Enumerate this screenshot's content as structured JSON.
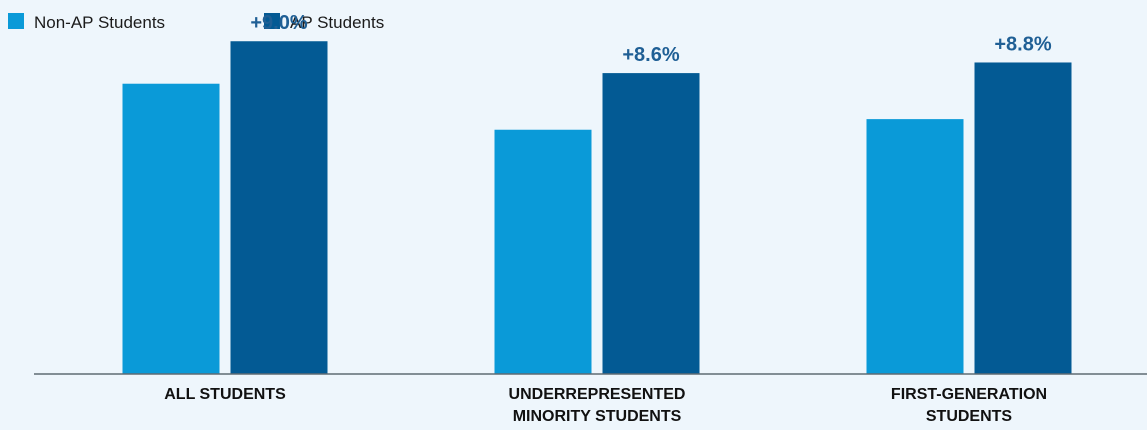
{
  "colors": {
    "background": "#eef6fc",
    "non_ap": "#0a9ad8",
    "ap": "#035a94",
    "label": "#1f5f95",
    "axis": "#5f6b73"
  },
  "chart_data": {
    "type": "bar",
    "title": "",
    "xlabel": "",
    "ylabel": "",
    "ylim": [
      0,
      100
    ],
    "grid": false,
    "legend_position": "top-left",
    "categories": [
      [
        "ALL STUDENTS"
      ],
      [
        "UNDERREPRESENTED",
        "MINORITY STUDENTS"
      ],
      [
        "FIRST-GENERATION",
        "STUDENTS"
      ]
    ],
    "series": [
      {
        "name": "Non-AP Students",
        "color": "#0a9ad8",
        "values": [
          82,
          69,
          72
        ]
      },
      {
        "name": "AP Students",
        "color": "#035a94",
        "values": [
          94,
          85,
          88
        ]
      }
    ],
    "data_labels": [
      "+9.0%",
      "+8.6%",
      "+8.8%"
    ]
  }
}
